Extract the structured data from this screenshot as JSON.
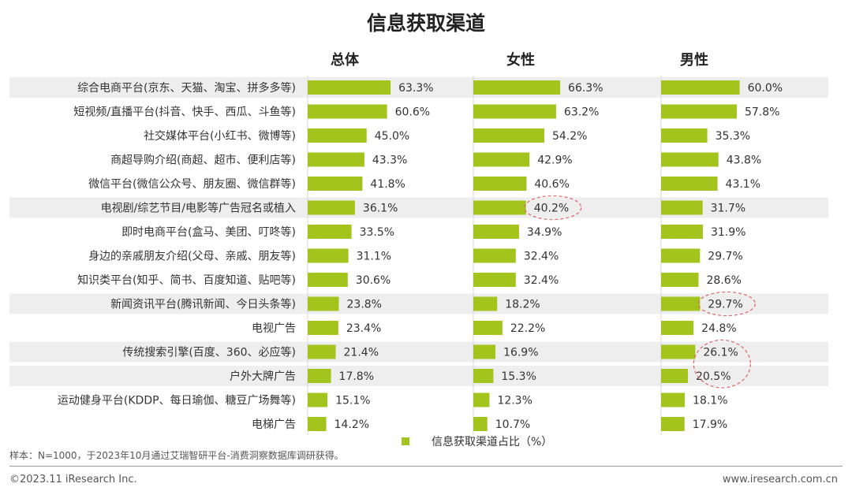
{
  "title": "信息获取渠道",
  "colors": {
    "bar": "#a2c41c",
    "stripe": "#eeeeee",
    "highlight": "#e06d72"
  },
  "chart_data": {
    "type": "bar",
    "orientation": "horizontal",
    "categories": [
      "综合电商平台(京东、天猫、淘宝、拼多多等)",
      "短视频/直播平台(抖音、快手、西瓜、斗鱼等)",
      "社交媒体平台(小红书、微博等)",
      "商超导购介绍(商超、超市、便利店等)",
      "微信平台(微信公众号、朋友圈、微信群等)",
      "电视剧/综艺节目/电影等广告冠名或植入",
      "即时电商平台(盒马、美团、叮咚等)",
      "身边的亲戚朋友介绍(父母、亲戚、朋友等)",
      "知识类平台(知乎、简书、百度知道、贴吧等)",
      "新闻资讯平台(腾讯新闻、今日头条等)",
      "电视广告",
      "传统搜索引擎(百度、360、必应等)",
      "户外大牌广告",
      "运动健身平台(KDDP、每日瑜伽、糖豆广场舞等)",
      "电梯广告"
    ],
    "series": [
      {
        "name": "总体",
        "values": [
          63.3,
          60.6,
          45.0,
          43.3,
          41.8,
          36.1,
          33.5,
          31.1,
          30.6,
          23.8,
          23.4,
          21.4,
          17.8,
          15.1,
          14.2
        ]
      },
      {
        "name": "女性",
        "values": [
          66.3,
          63.2,
          54.2,
          42.9,
          40.6,
          40.2,
          34.9,
          32.4,
          32.4,
          18.2,
          22.2,
          16.9,
          15.3,
          12.3,
          10.7
        ]
      },
      {
        "name": "男性",
        "values": [
          60.0,
          57.8,
          35.3,
          43.8,
          43.1,
          31.7,
          31.9,
          29.7,
          28.6,
          29.7,
          24.8,
          26.1,
          20.5,
          18.1,
          17.9
        ]
      }
    ],
    "value_suffix": "%",
    "shaded_rows": [
      0,
      5,
      9,
      11,
      12
    ],
    "highlights": [
      {
        "series": 1,
        "category": 5
      },
      {
        "series": 2,
        "category": 9
      },
      {
        "series": 2,
        "category": [
          11,
          12
        ]
      }
    ],
    "legend": {
      "label": "信息获取渠道占比（%）",
      "position": "bottom-center"
    },
    "xlim": [
      0,
      100
    ]
  },
  "footer": {
    "note": "样本：N=1000，于2023年10月通过艾瑞智研平台-消费洞察数据库调研获得。",
    "copyright": "©2023.11 iResearch Inc.",
    "website": "www.iresearch.com.cn"
  }
}
